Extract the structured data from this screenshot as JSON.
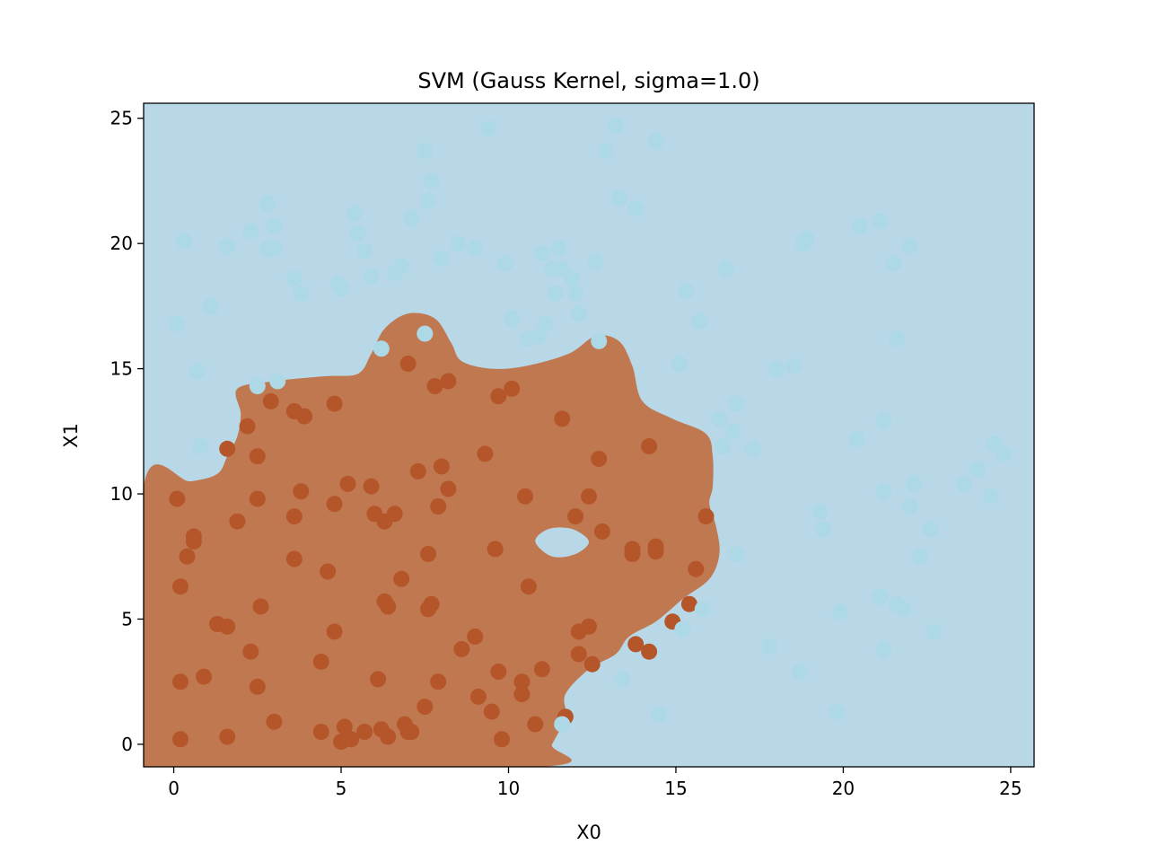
{
  "chart_data": {
    "type": "scatter",
    "title": "SVM (Gauss Kernel, sigma=1.0)",
    "xlabel": "X0",
    "ylabel": "X1",
    "xlim": [
      -0.9,
      25.7
    ],
    "ylim": [
      -0.9,
      25.6
    ],
    "xticks": [
      0,
      5,
      10,
      15,
      20,
      25
    ],
    "yticks": [
      0,
      5,
      10,
      15,
      20,
      25
    ],
    "grid": false,
    "legend": "none",
    "background_color": "#b8d8e8",
    "region_color": "#c07850",
    "decision_region": {
      "outline": [
        [
          -0.9,
          10.3
        ],
        [
          0.5,
          10.5
        ],
        [
          1.3,
          10.8
        ],
        [
          1.6,
          11.5
        ],
        [
          1.9,
          12.3
        ],
        [
          2.0,
          13.2
        ],
        [
          1.9,
          14.2
        ],
        [
          3.0,
          14.5
        ],
        [
          4.5,
          14.7
        ],
        [
          5.5,
          14.8
        ],
        [
          5.9,
          15.6
        ],
        [
          6.3,
          16.6
        ],
        [
          7.0,
          17.2
        ],
        [
          7.8,
          17.0
        ],
        [
          8.3,
          16.0
        ],
        [
          8.6,
          15.3
        ],
        [
          9.5,
          15.0
        ],
        [
          10.5,
          15.1
        ],
        [
          11.8,
          15.6
        ],
        [
          12.6,
          16.3
        ],
        [
          13.3,
          16.1
        ],
        [
          13.7,
          15.1
        ],
        [
          14.0,
          13.7
        ],
        [
          14.9,
          13.0
        ],
        [
          15.9,
          12.4
        ],
        [
          16.1,
          11.5
        ],
        [
          16.1,
          10.3
        ],
        [
          16.0,
          9.6
        ],
        [
          16.2,
          8.7
        ],
        [
          16.3,
          7.6
        ],
        [
          16.0,
          6.6
        ],
        [
          15.2,
          5.8
        ],
        [
          14.4,
          4.9
        ],
        [
          13.6,
          4.3
        ],
        [
          13.2,
          3.6
        ],
        [
          12.4,
          3.0
        ],
        [
          11.7,
          2.0
        ],
        [
          11.7,
          1.1
        ],
        [
          11.3,
          0.0
        ],
        [
          10.9,
          -0.9
        ],
        [
          -0.9,
          -0.9
        ]
      ],
      "hole": [
        [
          10.8,
          8.1
        ],
        [
          11.2,
          8.6
        ],
        [
          11.9,
          8.6
        ],
        [
          12.4,
          8.1
        ],
        [
          12.0,
          7.6
        ],
        [
          11.3,
          7.5
        ]
      ]
    },
    "series": [
      {
        "class": "positive",
        "color": "#b5562a",
        "points": [
          [
            0.1,
            9.8
          ],
          [
            0.6,
            8.3
          ],
          [
            0.6,
            8.1
          ],
          [
            0.4,
            7.5
          ],
          [
            0.2,
            6.3
          ],
          [
            0.2,
            2.5
          ],
          [
            0.2,
            0.2
          ],
          [
            0.9,
            2.7
          ],
          [
            1.3,
            4.8
          ],
          [
            1.6,
            4.7
          ],
          [
            1.6,
            0.3
          ],
          [
            1.6,
            11.8
          ],
          [
            1.9,
            8.9
          ],
          [
            2.2,
            12.7
          ],
          [
            2.3,
            3.7
          ],
          [
            2.5,
            2.3
          ],
          [
            2.5,
            11.5
          ],
          [
            2.5,
            9.8
          ],
          [
            2.6,
            5.5
          ],
          [
            2.9,
            13.7
          ],
          [
            3.0,
            0.9
          ],
          [
            3.6,
            13.3
          ],
          [
            3.6,
            9.1
          ],
          [
            3.6,
            7.4
          ],
          [
            3.8,
            10.1
          ],
          [
            3.9,
            13.1
          ],
          [
            4.4,
            3.3
          ],
          [
            4.4,
            0.5
          ],
          [
            4.6,
            6.9
          ],
          [
            4.8,
            13.6
          ],
          [
            4.8,
            9.6
          ],
          [
            4.8,
            4.5
          ],
          [
            5.0,
            0.1
          ],
          [
            5.1,
            0.7
          ],
          [
            5.2,
            10.4
          ],
          [
            5.3,
            0.2
          ],
          [
            5.7,
            0.5
          ],
          [
            5.9,
            10.3
          ],
          [
            6.0,
            9.2
          ],
          [
            6.1,
            2.6
          ],
          [
            6.2,
            0.6
          ],
          [
            6.3,
            5.7
          ],
          [
            6.3,
            8.9
          ],
          [
            6.4,
            5.5
          ],
          [
            6.4,
            0.3
          ],
          [
            6.6,
            9.2
          ],
          [
            6.8,
            6.6
          ],
          [
            6.9,
            0.8
          ],
          [
            7.0,
            15.2
          ],
          [
            7.0,
            0.5
          ],
          [
            7.1,
            0.5
          ],
          [
            7.3,
            10.9
          ],
          [
            7.5,
            1.5
          ],
          [
            7.6,
            5.4
          ],
          [
            7.6,
            7.6
          ],
          [
            7.7,
            5.6
          ],
          [
            7.8,
            14.3
          ],
          [
            7.9,
            9.5
          ],
          [
            7.9,
            2.5
          ],
          [
            8.0,
            11.1
          ],
          [
            8.2,
            14.5
          ],
          [
            8.2,
            10.2
          ],
          [
            8.6,
            3.8
          ],
          [
            9.0,
            4.3
          ],
          [
            9.1,
            1.9
          ],
          [
            9.3,
            11.6
          ],
          [
            9.5,
            1.3
          ],
          [
            9.6,
            7.8
          ],
          [
            9.7,
            13.9
          ],
          [
            9.7,
            2.9
          ],
          [
            9.8,
            0.2
          ],
          [
            10.1,
            14.2
          ],
          [
            10.4,
            2.5
          ],
          [
            10.4,
            2.0
          ],
          [
            10.5,
            9.9
          ],
          [
            10.6,
            6.3
          ],
          [
            10.8,
            0.8
          ],
          [
            11.0,
            3.0
          ],
          [
            11.6,
            13.0
          ],
          [
            11.7,
            1.1
          ],
          [
            12.0,
            9.1
          ],
          [
            12.1,
            4.5
          ],
          [
            12.1,
            3.6
          ],
          [
            12.4,
            4.7
          ],
          [
            12.4,
            9.9
          ],
          [
            12.5,
            3.2
          ],
          [
            12.7,
            11.4
          ],
          [
            12.8,
            8.5
          ],
          [
            13.7,
            7.8
          ],
          [
            13.7,
            7.6
          ],
          [
            13.8,
            4.0
          ],
          [
            14.2,
            3.7
          ],
          [
            14.2,
            11.9
          ],
          [
            14.4,
            7.7
          ],
          [
            14.4,
            7.9
          ],
          [
            14.9,
            4.9
          ],
          [
            15.4,
            5.6
          ],
          [
            15.6,
            7.0
          ],
          [
            15.9,
            9.1
          ]
        ]
      },
      {
        "class": "negative",
        "color": "#add8e6",
        "points": [
          [
            0.1,
            16.8
          ],
          [
            0.3,
            20.1
          ],
          [
            0.7,
            14.9
          ],
          [
            0.8,
            11.9
          ],
          [
            1.1,
            17.5
          ],
          [
            1.6,
            19.9
          ],
          [
            2.3,
            20.5
          ],
          [
            2.5,
            14.3
          ],
          [
            2.8,
            21.6
          ],
          [
            2.8,
            19.8
          ],
          [
            3.0,
            19.8
          ],
          [
            3.0,
            20.7
          ],
          [
            3.1,
            14.5
          ],
          [
            3.6,
            18.6
          ],
          [
            3.8,
            18.0
          ],
          [
            4.9,
            18.4
          ],
          [
            5.0,
            18.2
          ],
          [
            5.4,
            21.2
          ],
          [
            5.5,
            20.4
          ],
          [
            5.7,
            19.7
          ],
          [
            5.9,
            18.7
          ],
          [
            6.2,
            15.8
          ],
          [
            6.6,
            18.8
          ],
          [
            6.8,
            19.1
          ],
          [
            7.1,
            21.0
          ],
          [
            7.5,
            23.7
          ],
          [
            7.5,
            16.4
          ],
          [
            7.6,
            21.7
          ],
          [
            7.7,
            22.5
          ],
          [
            8.5,
            20.0
          ],
          [
            8.0,
            19.4
          ],
          [
            9.0,
            19.8
          ],
          [
            9.4,
            24.6
          ],
          [
            9.9,
            19.2
          ],
          [
            10.1,
            17.0
          ],
          [
            10.6,
            16.2
          ],
          [
            10.9,
            16.3
          ],
          [
            11.1,
            16.8
          ],
          [
            11.0,
            19.6
          ],
          [
            11.3,
            19.0
          ],
          [
            11.4,
            18.0
          ],
          [
            11.5,
            19.8
          ],
          [
            11.6,
            19.0
          ],
          [
            11.9,
            18.6
          ],
          [
            12.0,
            18.0
          ],
          [
            12.1,
            17.2
          ],
          [
            12.6,
            19.3
          ],
          [
            12.7,
            16.1
          ],
          [
            12.9,
            23.7
          ],
          [
            13.2,
            24.7
          ],
          [
            13.3,
            21.8
          ],
          [
            13.8,
            21.4
          ],
          [
            14.4,
            24.1
          ],
          [
            15.1,
            15.2
          ],
          [
            15.3,
            18.1
          ],
          [
            15.7,
            16.9
          ],
          [
            16.5,
            19.0
          ],
          [
            16.3,
            13.0
          ],
          [
            16.4,
            11.9
          ],
          [
            16.7,
            12.5
          ],
          [
            16.8,
            13.6
          ],
          [
            17.3,
            11.8
          ],
          [
            16.8,
            7.6
          ],
          [
            15.8,
            5.4
          ],
          [
            15.2,
            4.6
          ],
          [
            14.5,
            1.2
          ],
          [
            13.4,
            2.6
          ],
          [
            11.6,
            0.8
          ],
          [
            17.8,
            3.9
          ],
          [
            18.0,
            15.0
          ],
          [
            18.5,
            15.1
          ],
          [
            18.8,
            20.0
          ],
          [
            18.9,
            20.2
          ],
          [
            18.7,
            2.9
          ],
          [
            19.3,
            9.3
          ],
          [
            19.4,
            8.6
          ],
          [
            19.8,
            1.3
          ],
          [
            20.4,
            12.2
          ],
          [
            20.5,
            20.7
          ],
          [
            19.9,
            5.3
          ],
          [
            21.1,
            20.9
          ],
          [
            21.2,
            12.9
          ],
          [
            21.2,
            10.1
          ],
          [
            21.1,
            5.9
          ],
          [
            21.2,
            3.8
          ],
          [
            21.5,
            19.2
          ],
          [
            21.6,
            16.2
          ],
          [
            21.6,
            5.6
          ],
          [
            21.8,
            5.4
          ],
          [
            22.0,
            19.9
          ],
          [
            22.0,
            9.5
          ],
          [
            22.1,
            10.4
          ],
          [
            22.3,
            7.5
          ],
          [
            22.6,
            8.6
          ],
          [
            22.7,
            4.5
          ],
          [
            23.6,
            10.4
          ],
          [
            24.0,
            11.0
          ],
          [
            24.4,
            9.9
          ],
          [
            24.5,
            12.0
          ],
          [
            24.8,
            11.6
          ]
        ]
      }
    ]
  }
}
